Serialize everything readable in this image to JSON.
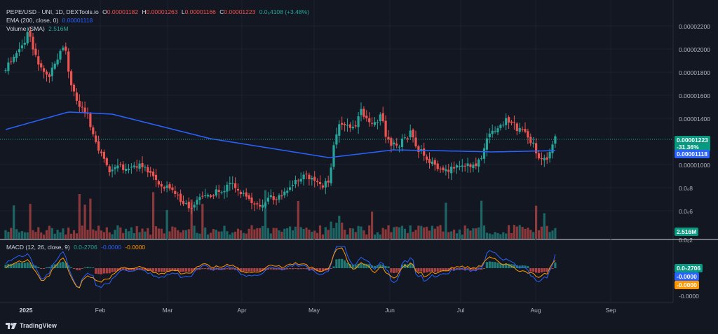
{
  "legend": {
    "symbol": "PEPE/USD · UNI, 1D, DEXTools.io",
    "o_label": "O",
    "o_value": "0.00001182",
    "h_label": "H",
    "h_value": "0.00001263",
    "l_label": "L",
    "l_value": "0.00001166",
    "c_label": "C",
    "c_value": "0.00001223",
    "change": "0.0₆4108 (+3.48%)",
    "ema_label": "EMA (200, close, 0)",
    "ema_value": "0.00001118",
    "volume_label": "Volume (SMA)",
    "volume_value": "2.516M",
    "macd_label": "MACD (12, 26, close, 9)",
    "macd_hist": "0.0₇2706",
    "macd_line": "-0.0000",
    "macd_signal": "-0.0000"
  },
  "price_axis": {
    "ticks": [
      "0.00002200",
      "0.00002000",
      "0.00001800",
      "0.00001600",
      "0.00001400",
      "0.00001000",
      "0.0₅8",
      "0.0₅6",
      "0.0₅2"
    ],
    "current_price": "0.00001223",
    "current_change": "-31.36%",
    "ema_tag": "0.00001118",
    "volume_tag": "2.516M"
  },
  "macd_axis": {
    "ticks": [
      "-0.0000"
    ],
    "hist_tag": "0.0₇2706",
    "macd_tag": "-0.0000",
    "signal_tag": "-0.0000"
  },
  "time_axis": {
    "labels": [
      "2025",
      "Feb",
      "Mar",
      "Apr",
      "May",
      "Jun",
      "Jul",
      "Aug",
      "Sep"
    ]
  },
  "branding": {
    "name": "TradingView"
  },
  "colors": {
    "up": "#26a69a",
    "down": "#ef5350",
    "ema": "#2962ff",
    "macd": "#2962ff",
    "signal": "#ff9800",
    "background": "#131722"
  },
  "chart_data": {
    "type": "candlestick",
    "x_range": [
      "2025-01-01",
      "2025-09-30"
    ],
    "y_range": [
      5.2e-06,
      2.29e-05
    ],
    "ema_start": 1.33e-05,
    "ema_end": 1.118e-05,
    "last_close": 1.223e-05
  }
}
